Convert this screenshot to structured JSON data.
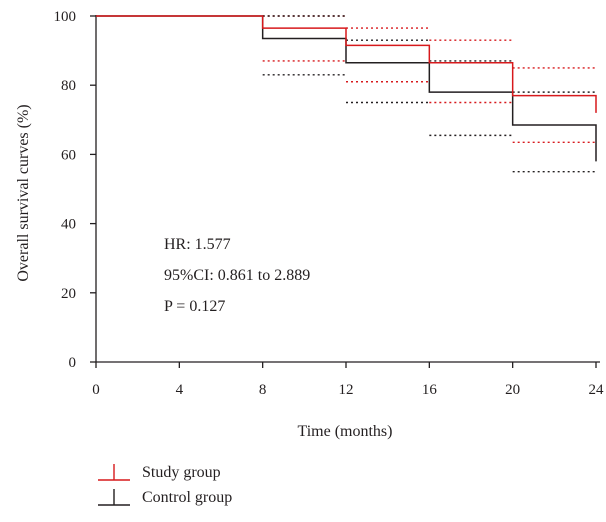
{
  "chart_data": {
    "type": "line",
    "xlabel": "Time (months)",
    "ylabel": "Overall survival curves (%)",
    "xlim": [
      0,
      24
    ],
    "ylim": [
      0,
      100
    ],
    "x_ticks": [
      0,
      4,
      8,
      12,
      16,
      20,
      24
    ],
    "y_ticks": [
      0,
      20,
      40,
      60,
      80,
      100
    ],
    "grid": false,
    "legend_position": "bottom-left",
    "annotations": {
      "hr": "HR: 1.577",
      "ci": "95%CI: 0.861 to 2.889",
      "p": "P = 0.127"
    },
    "series": [
      {
        "name": "Study group",
        "color": "#d7191c",
        "step": true,
        "x": [
          0,
          8,
          12,
          16,
          20,
          24
        ],
        "y": [
          100,
          96.5,
          91.5,
          86.5,
          77,
          72
        ],
        "ci_upper": {
          "x": [
            8,
            12,
            16,
            20,
            24
          ],
          "y": [
            100,
            96.5,
            93,
            85,
            85
          ]
        },
        "ci_lower": {
          "x": [
            8,
            12,
            16,
            20,
            24
          ],
          "y": [
            87,
            81,
            75,
            63.5,
            63.5
          ]
        }
      },
      {
        "name": "Control group",
        "color": "#231f20",
        "step": true,
        "x": [
          0,
          8,
          12,
          16,
          20,
          24
        ],
        "y": [
          100,
          93.5,
          86.5,
          78,
          68.5,
          58
        ],
        "ci_upper": {
          "x": [
            8,
            12,
            16,
            20,
            24
          ],
          "y": [
            100,
            93,
            87,
            78,
            78
          ]
        },
        "ci_lower": {
          "x": [
            8,
            12,
            16,
            20,
            24
          ],
          "y": [
            83,
            75,
            65.5,
            55,
            45.5
          ]
        }
      }
    ]
  },
  "colors": {
    "axis": "#231f20",
    "study": "#d7191c",
    "control": "#231f20"
  }
}
